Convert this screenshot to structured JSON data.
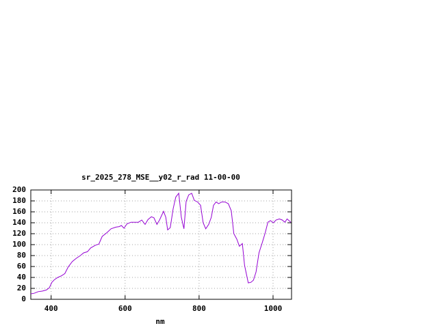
{
  "chart_data": {
    "type": "line",
    "title": "sr_2025_278_MSE__y02_r_rad 11-00-00",
    "x_label": "nm",
    "x": [
      345,
      354,
      365,
      376,
      387,
      395,
      402,
      409,
      418,
      428,
      437,
      446,
      457,
      468,
      479,
      488,
      498,
      507,
      520,
      529,
      538,
      551,
      562,
      575,
      584,
      590,
      597,
      605,
      616,
      627,
      636,
      645,
      654,
      662,
      671,
      678,
      686,
      693,
      704,
      710,
      715,
      722,
      730,
      737,
      745,
      752,
      759,
      765,
      772,
      780,
      787,
      796,
      804,
      811,
      818,
      826,
      833,
      839,
      846,
      853,
      861,
      870,
      879,
      887,
      894,
      902,
      909,
      917,
      923,
      933,
      940,
      947,
      954,
      962,
      971,
      979,
      986,
      993,
      1001,
      1008,
      1017,
      1025,
      1032,
      1038,
      1048
    ],
    "series": [
      {
        "color": "#9400d3",
        "values": [
          10,
          11,
          14,
          15,
          17,
          21,
          31,
          36,
          40,
          43,
          47,
          59,
          69,
          75,
          80,
          85,
          87,
          94,
          99,
          101,
          115,
          122,
          129,
          132,
          133,
          135,
          130,
          138,
          141,
          141,
          141,
          145,
          137,
          146,
          151,
          149,
          137,
          145,
          161,
          150,
          127,
          131,
          166,
          187,
          194,
          150,
          129,
          179,
          191,
          194,
          181,
          178,
          172,
          140,
          129,
          137,
          150,
          172,
          178,
          175,
          178,
          178,
          175,
          162,
          120,
          110,
          97,
          102,
          62,
          30,
          31,
          35,
          50,
          85,
          104,
          122,
          141,
          144,
          140,
          145,
          147,
          145,
          141,
          147,
          141
        ]
      }
    ],
    "xlim": [
      345,
      1050
    ],
    "ylim": [
      0,
      200
    ],
    "xticks": [
      400,
      600,
      800,
      1000
    ],
    "yticks": [
      0,
      20,
      40,
      60,
      80,
      100,
      120,
      140,
      160,
      180,
      200
    ],
    "grid": true
  }
}
